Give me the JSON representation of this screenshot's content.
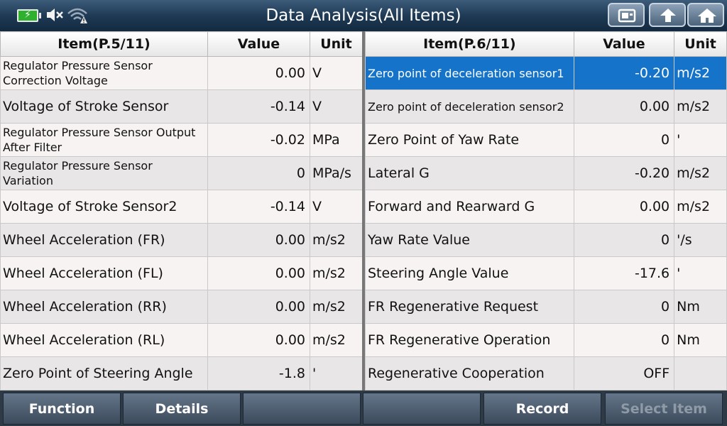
{
  "header": {
    "title": "Data Analysis(All Items)",
    "battery_symbol": "⚡",
    "status_icons": [
      "battery-charging-icon",
      "speaker-mute-icon",
      "wifi-warning-icon"
    ],
    "nav_icons": [
      "screenshot-icon",
      "back-up-arrow-icon",
      "home-icon"
    ]
  },
  "left_table": {
    "headers": {
      "item": "Item(P.5/11)",
      "value": "Value",
      "unit": "Unit"
    },
    "rows": [
      {
        "name": "Regulator Pressure Sensor Correction Voltage",
        "value": "0.00",
        "unit": "V",
        "small": true
      },
      {
        "name": "Voltage of Stroke Sensor",
        "value": "-0.14",
        "unit": "V"
      },
      {
        "name": "Regulator Pressure Sensor Output After Filter",
        "value": "-0.02",
        "unit": "MPa",
        "small": true
      },
      {
        "name": "Regulator Pressure Sensor Variation",
        "value": "0",
        "unit": "MPa/s",
        "small": true
      },
      {
        "name": "Voltage of Stroke Sensor2",
        "value": "-0.14",
        "unit": "V"
      },
      {
        "name": "Wheel Acceleration (FR)",
        "value": "0.00",
        "unit": "m/s2"
      },
      {
        "name": "Wheel Acceleration (FL)",
        "value": "0.00",
        "unit": "m/s2"
      },
      {
        "name": "Wheel Acceleration (RR)",
        "value": "0.00",
        "unit": "m/s2"
      },
      {
        "name": "Wheel Acceleration (RL)",
        "value": "0.00",
        "unit": "m/s2"
      },
      {
        "name": "Zero Point of Steering Angle",
        "value": "-1.8",
        "unit": "'"
      }
    ]
  },
  "right_table": {
    "headers": {
      "item": "Item(P.6/11)",
      "value": "Value",
      "unit": "Unit"
    },
    "rows": [
      {
        "name": "Zero point of deceleration sensor1",
        "value": "-0.20",
        "unit": "m/s2",
        "small": true,
        "selected": true
      },
      {
        "name": "Zero point of deceleration sensor2",
        "value": "0.00",
        "unit": "m/s2",
        "small": true
      },
      {
        "name": "Zero Point of Yaw Rate",
        "value": "0",
        "unit": "'"
      },
      {
        "name": "Lateral G",
        "value": "-0.20",
        "unit": "m/s2"
      },
      {
        "name": "Forward and Rearward G",
        "value": "0.00",
        "unit": "m/s2"
      },
      {
        "name": "Yaw Rate Value",
        "value": "0",
        "unit": "'/s"
      },
      {
        "name": "Steering Angle Value",
        "value": "-17.6",
        "unit": "'"
      },
      {
        "name": "FR Regenerative Request",
        "value": "0",
        "unit": "Nm"
      },
      {
        "name": "FR Regenerative Operation",
        "value": "0",
        "unit": "Nm"
      },
      {
        "name": "Regenerative Cooperation",
        "value": "OFF",
        "unit": ""
      }
    ]
  },
  "footer": {
    "buttons": [
      {
        "label": "Function",
        "enabled": true
      },
      {
        "label": "Details",
        "enabled": true
      },
      {
        "label": "",
        "enabled": true
      },
      {
        "label": "",
        "enabled": true
      },
      {
        "label": "Record",
        "enabled": true
      },
      {
        "label": "Select Item",
        "enabled": false
      }
    ]
  },
  "colors": {
    "selected_row": "#1573c9",
    "header_bar": "#1f3a55"
  }
}
